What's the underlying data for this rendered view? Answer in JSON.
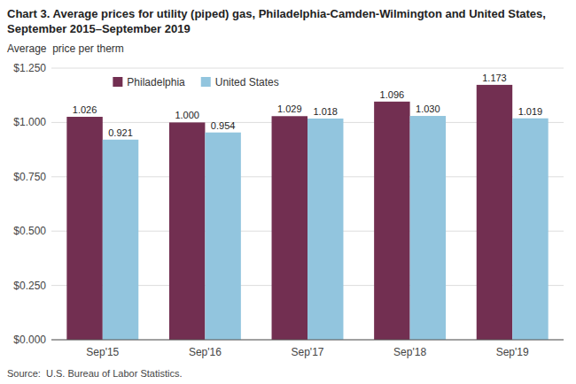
{
  "chart_data": {
    "type": "bar",
    "title": "Chart 3. Average prices for utility (piped) gas, Philadelphia-Camden-Wilmington and United States, September 2015–September 2019",
    "y_label": "Average  price per therm",
    "source": "Source:  U.S. Bureau of Labor Statistics.",
    "categories": [
      "Sep'15",
      "Sep'16",
      "Sep'17",
      "Sep'18",
      "Sep'19"
    ],
    "series": [
      {
        "name": "Philadelphia",
        "color": "#722F51",
        "values": [
          1.026,
          1.0,
          1.029,
          1.096,
          1.173
        ],
        "value_labels": [
          "1.026",
          "1.000",
          "1.029",
          "1.096",
          "1.173"
        ]
      },
      {
        "name": "United States",
        "color": "#92C5DE",
        "values": [
          0.921,
          0.954,
          1.018,
          1.03,
          1.019
        ],
        "value_labels": [
          "0.921",
          "0.954",
          "1.018",
          "1.030",
          "1.019"
        ]
      }
    ],
    "ylim": [
      0,
      1.25
    ],
    "yticks": [
      {
        "value": 0.0,
        "label": "$0.000"
      },
      {
        "value": 0.25,
        "label": "$0.250"
      },
      {
        "value": 0.5,
        "label": "$0.500"
      },
      {
        "value": 0.75,
        "label": "$0.750"
      },
      {
        "value": 1.0,
        "label": "$1.000"
      },
      {
        "value": 1.25,
        "label": "$1.250"
      }
    ],
    "grid": true,
    "legend": "upper left",
    "data_labels": true
  }
}
